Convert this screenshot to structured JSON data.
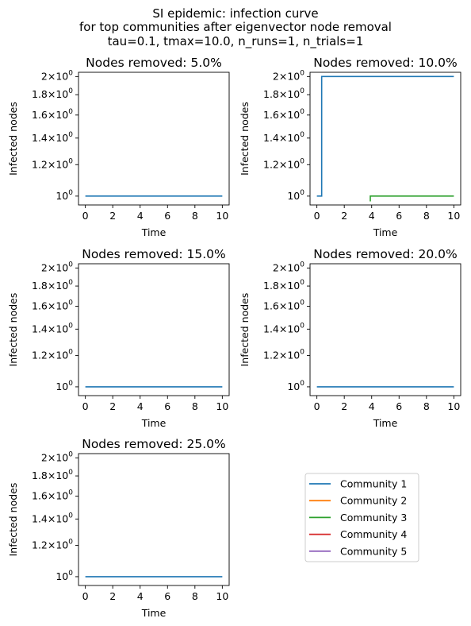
{
  "suptitle": [
    "SI epidemic: infection curve",
    "for top communities after eigenvector node removal",
    "tau=0.1, tmax=10.0, n_runs=1, n_trials=1"
  ],
  "colors": {
    "Community 1": "#1f77b4",
    "Community 2": "#ff7f0e",
    "Community 3": "#2ca02c",
    "Community 4": "#d62728",
    "Community 5": "#9467bd"
  },
  "legend": {
    "placement": "empty bottom-right cell",
    "entries": [
      "Community 1",
      "Community 2",
      "Community 3",
      "Community 4",
      "Community 5"
    ]
  },
  "chart_data": [
    {
      "type": "line",
      "title": "Nodes removed: 5.0%",
      "xlabel": "Time",
      "ylabel": "Infected nodes",
      "yscale": "log",
      "xlim": [
        -0.5,
        10.5
      ],
      "ylim": [
        0.95,
        2.05
      ],
      "xticks": [
        0,
        2,
        4,
        6,
        8,
        10
      ],
      "yticks": [
        1.0,
        1.2,
        1.4,
        1.6,
        1.8,
        2.0
      ],
      "ytick_labels": [
        "10^0",
        "1.2×10^0",
        "1.4×10^0",
        "1.6×10^0",
        "1.8×10^0",
        "2×10^0"
      ],
      "series": [
        {
          "name": "Community 1",
          "x": [
            0,
            10
          ],
          "y": [
            1,
            1
          ]
        }
      ]
    },
    {
      "type": "line",
      "title": "Nodes removed: 10.0%",
      "xlabel": "Time",
      "ylabel": "Infected nodes",
      "yscale": "log",
      "xlim": [
        -0.5,
        10.5
      ],
      "ylim": [
        0.95,
        2.05
      ],
      "xticks": [
        0,
        2,
        4,
        6,
        8,
        10
      ],
      "yticks": [
        1.0,
        1.2,
        1.4,
        1.6,
        1.8,
        2.0
      ],
      "ytick_labels": [
        "10^0",
        "1.2×10^0",
        "1.4×10^0",
        "1.6×10^0",
        "1.8×10^0",
        "2×10^0"
      ],
      "series": [
        {
          "name": "Community 1",
          "x": [
            0,
            0.35,
            0.35,
            10
          ],
          "y": [
            1,
            1,
            2,
            2
          ]
        },
        {
          "name": "Community 3",
          "x": [
            3.9,
            3.9,
            10
          ],
          "y": [
            0.97,
            1,
            1
          ]
        }
      ]
    },
    {
      "type": "line",
      "title": "Nodes removed: 15.0%",
      "xlabel": "Time",
      "ylabel": "Infected nodes",
      "yscale": "log",
      "xlim": [
        -0.5,
        10.5
      ],
      "ylim": [
        0.95,
        2.05
      ],
      "xticks": [
        0,
        2,
        4,
        6,
        8,
        10
      ],
      "yticks": [
        1.0,
        1.2,
        1.4,
        1.6,
        1.8,
        2.0
      ],
      "ytick_labels": [
        "10^0",
        "1.2×10^0",
        "1.4×10^0",
        "1.6×10^0",
        "1.8×10^0",
        "2×10^0"
      ],
      "series": [
        {
          "name": "Community 1",
          "x": [
            0,
            10
          ],
          "y": [
            1,
            1
          ]
        }
      ]
    },
    {
      "type": "line",
      "title": "Nodes removed: 20.0%",
      "xlabel": "Time",
      "ylabel": "Infected nodes",
      "yscale": "log",
      "xlim": [
        -0.5,
        10.5
      ],
      "ylim": [
        0.95,
        2.05
      ],
      "xticks": [
        0,
        2,
        4,
        6,
        8,
        10
      ],
      "yticks": [
        1.0,
        1.2,
        1.4,
        1.6,
        1.8,
        2.0
      ],
      "ytick_labels": [
        "10^0",
        "1.2×10^0",
        "1.4×10^0",
        "1.6×10^0",
        "1.8×10^0",
        "2×10^0"
      ],
      "series": [
        {
          "name": "Community 1",
          "x": [
            0,
            10
          ],
          "y": [
            1,
            1
          ]
        }
      ]
    },
    {
      "type": "line",
      "title": "Nodes removed: 25.0%",
      "xlabel": "Time",
      "ylabel": "Infected nodes",
      "yscale": "log",
      "xlim": [
        -0.5,
        10.5
      ],
      "ylim": [
        0.95,
        2.05
      ],
      "xticks": [
        0,
        2,
        4,
        6,
        8,
        10
      ],
      "yticks": [
        1.0,
        1.2,
        1.4,
        1.6,
        1.8,
        2.0
      ],
      "ytick_labels": [
        "10^0",
        "1.2×10^0",
        "1.4×10^0",
        "1.6×10^0",
        "1.8×10^0",
        "2×10^0"
      ],
      "series": [
        {
          "name": "Community 1",
          "x": [
            0,
            10
          ],
          "y": [
            1,
            1
          ]
        }
      ]
    }
  ]
}
